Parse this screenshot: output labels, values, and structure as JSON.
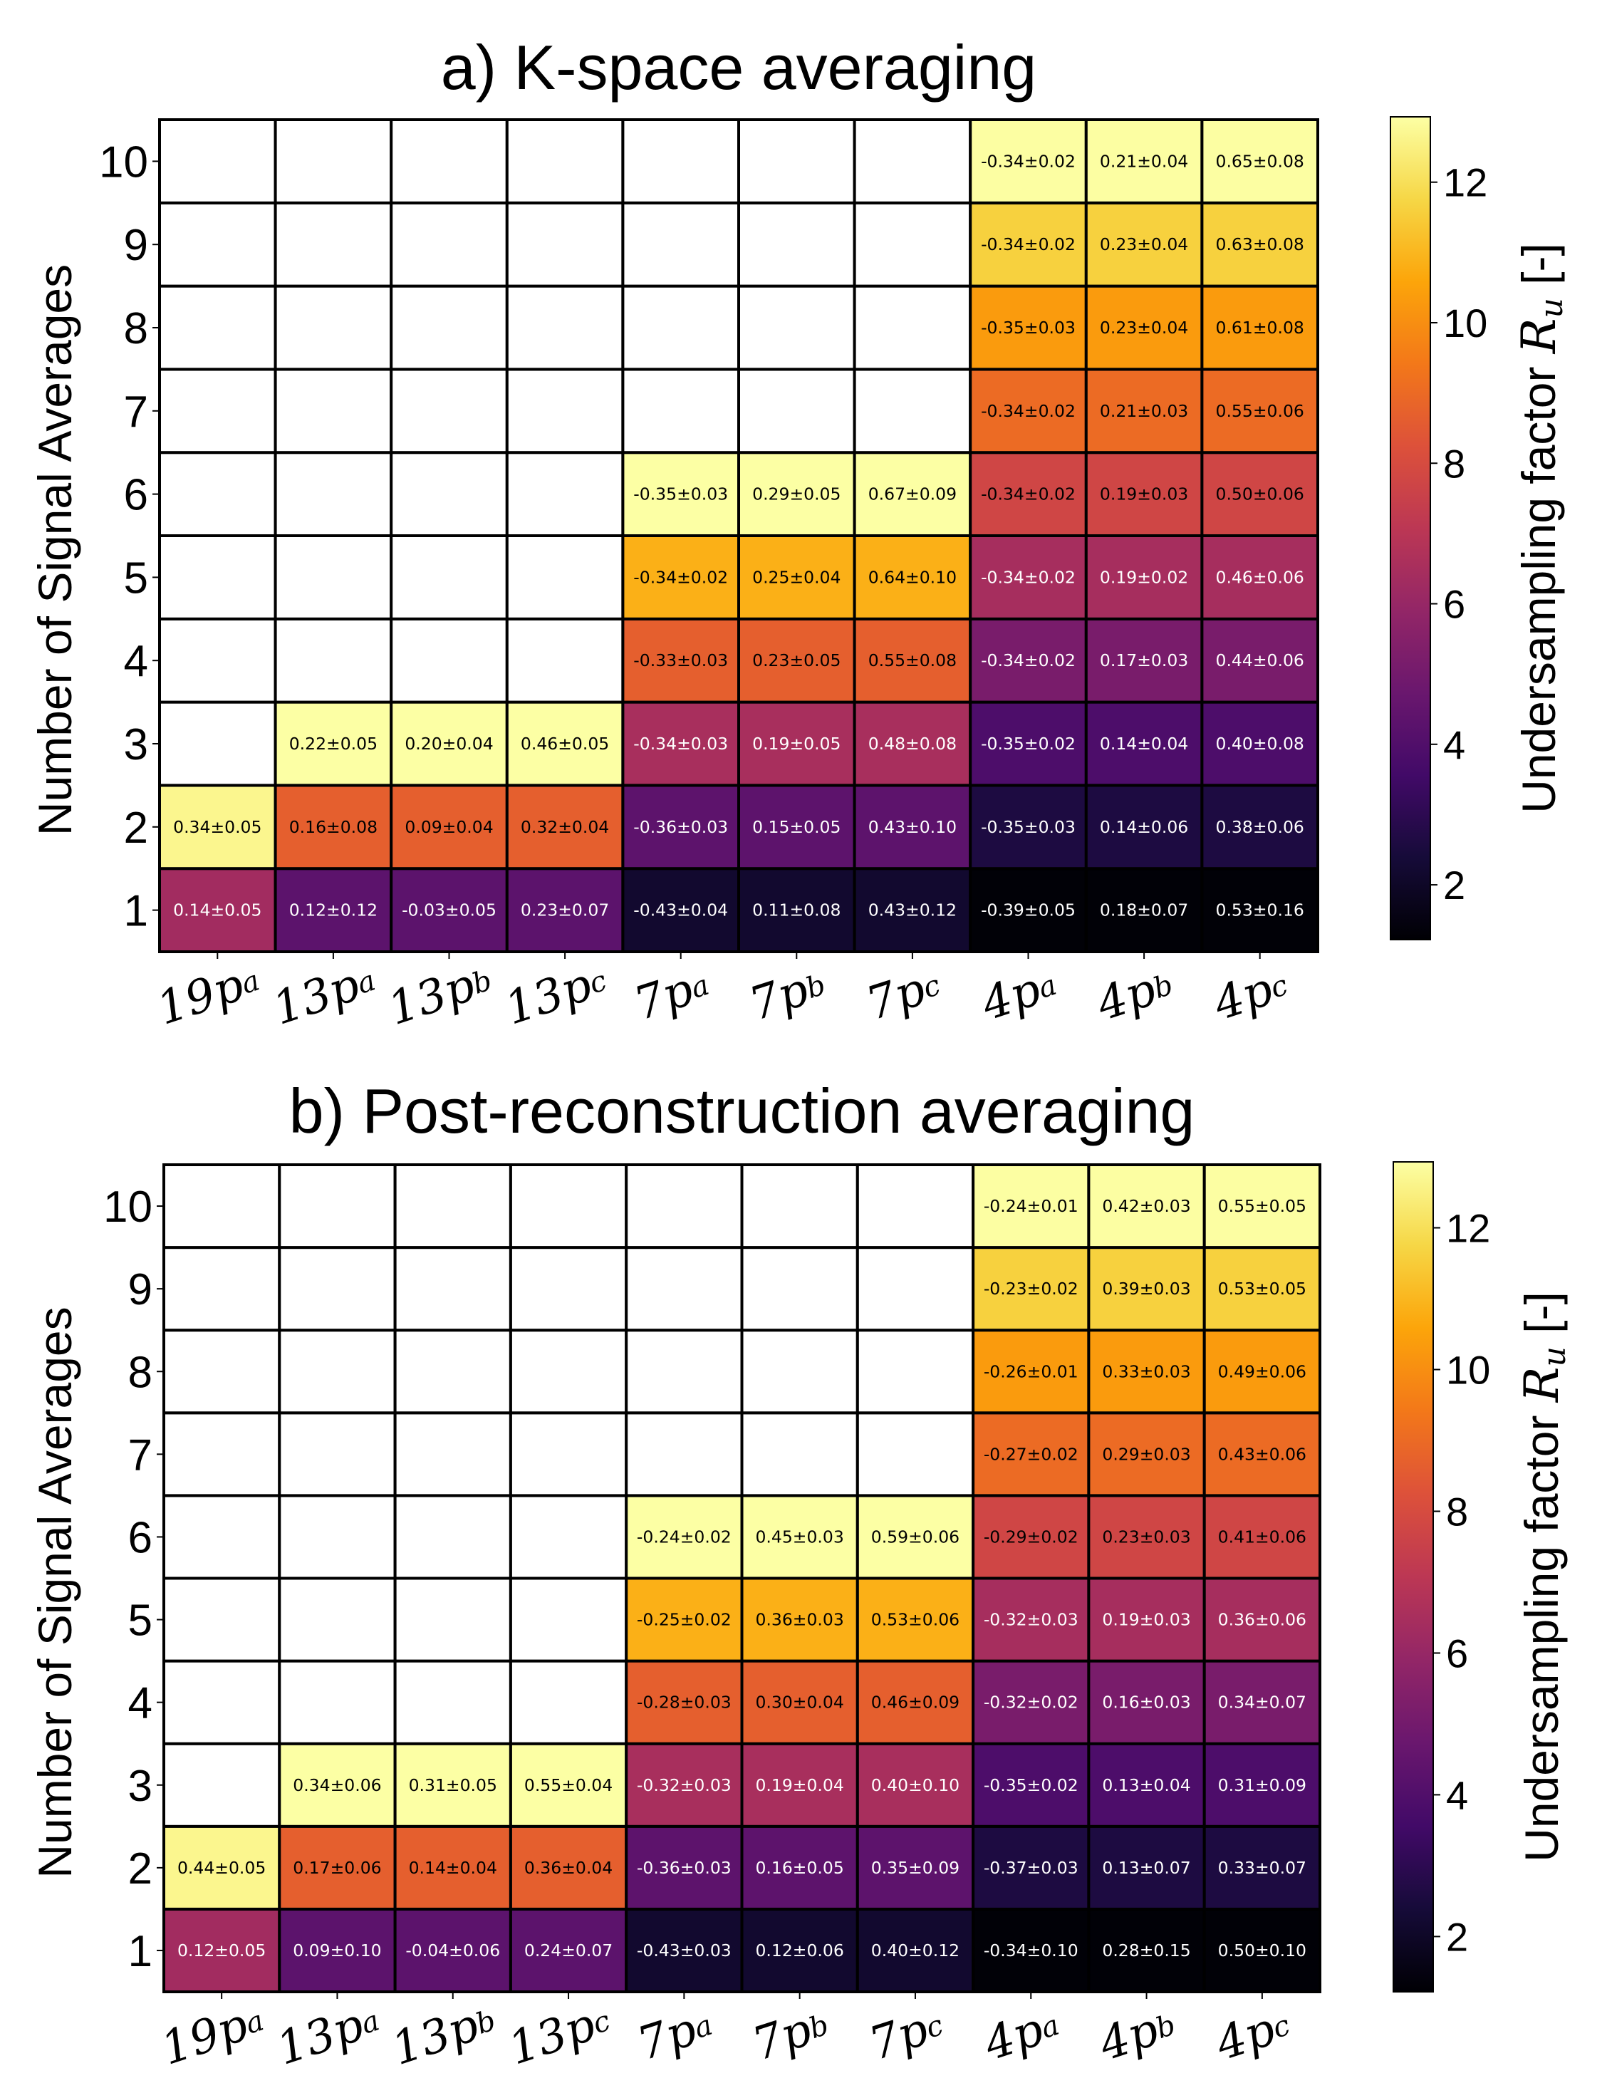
{
  "chart_data": [
    {
      "type": "heatmap",
      "title": "a) K-space averaging",
      "ylabel": "Number of Signal Averages",
      "colorbar_label": "Undersampling factor ",
      "colorbar_symbol": "R",
      "colorbar_symbol_sub": "u",
      "colorbar_unit": " [-]",
      "colorbar_ticks": [
        "2",
        "4",
        "6",
        "8",
        "10",
        "12"
      ],
      "colorbar_range": [
        1.22,
        12.93
      ],
      "colormap": "inferno",
      "x_labels": [
        {
          "main": "19p",
          "sub": "a"
        },
        {
          "main": "13p",
          "sub": "a"
        },
        {
          "main": "13p",
          "sub": "b"
        },
        {
          "main": "13p",
          "sub": "c"
        },
        {
          "main": "7p",
          "sub": "a"
        },
        {
          "main": "7p",
          "sub": "b"
        },
        {
          "main": "7p",
          "sub": "c"
        },
        {
          "main": "4p",
          "sub": "a"
        },
        {
          "main": "4p",
          "sub": "b"
        },
        {
          "main": "4p",
          "sub": "c"
        }
      ],
      "y_labels": [
        "1",
        "2",
        "3",
        "4",
        "5",
        "6",
        "7",
        "8",
        "9",
        "10"
      ],
      "ru_per_average": [
        6.33,
        4.33,
        4.33,
        4.33,
        2.17,
        2.17,
        2.17,
        1.29,
        1.29,
        1.29
      ],
      "rows": [
        [
          "0.14±0.05",
          "0.12±0.12",
          "-0.03±0.05",
          "0.23±0.07",
          "-0.43±0.04",
          "0.11±0.08",
          "0.43±0.12",
          "-0.39±0.05",
          "0.18±0.07",
          "0.53±0.16"
        ],
        [
          "0.34±0.05",
          "0.16±0.08",
          "0.09±0.04",
          "0.32±0.04",
          "-0.36±0.03",
          "0.15±0.05",
          "0.43±0.10",
          "-0.35±0.03",
          "0.14±0.06",
          "0.38±0.06"
        ],
        [
          null,
          "0.22±0.05",
          "0.20±0.04",
          "0.46±0.05",
          "-0.34±0.03",
          "0.19±0.05",
          "0.48±0.08",
          "-0.35±0.02",
          "0.14±0.04",
          "0.40±0.08"
        ],
        [
          null,
          null,
          null,
          null,
          "-0.33±0.03",
          "0.23±0.05",
          "0.55±0.08",
          "-0.34±0.02",
          "0.17±0.03",
          "0.44±0.06"
        ],
        [
          null,
          null,
          null,
          null,
          "-0.34±0.02",
          "0.25±0.04",
          "0.64±0.10",
          "-0.34±0.02",
          "0.19±0.02",
          "0.46±0.06"
        ],
        [
          null,
          null,
          null,
          null,
          "-0.35±0.03",
          "0.29±0.05",
          "0.67±0.09",
          "-0.34±0.02",
          "0.19±0.03",
          "0.50±0.06"
        ],
        [
          null,
          null,
          null,
          null,
          null,
          null,
          null,
          "-0.34±0.02",
          "0.21±0.03",
          "0.55±0.06"
        ],
        [
          null,
          null,
          null,
          null,
          null,
          null,
          null,
          "-0.35±0.03",
          "0.23±0.04",
          "0.61±0.08"
        ],
        [
          null,
          null,
          null,
          null,
          null,
          null,
          null,
          "-0.34±0.02",
          "0.23±0.04",
          "0.63±0.08"
        ],
        [
          null,
          null,
          null,
          null,
          null,
          null,
          null,
          "-0.34±0.02",
          "0.21±0.04",
          "0.65±0.08"
        ]
      ]
    },
    {
      "type": "heatmap",
      "title": "b) Post-reconstruction averaging",
      "ylabel": "Number of Signal Averages",
      "colorbar_label": "Undersampling factor ",
      "colorbar_symbol": "R",
      "colorbar_symbol_sub": "u",
      "colorbar_unit": " [-]",
      "colorbar_ticks": [
        "2",
        "4",
        "6",
        "8",
        "10",
        "12"
      ],
      "colorbar_range": [
        1.22,
        12.93
      ],
      "colormap": "inferno",
      "x_labels": [
        {
          "main": "19p",
          "sub": "a"
        },
        {
          "main": "13p",
          "sub": "a"
        },
        {
          "main": "13p",
          "sub": "b"
        },
        {
          "main": "13p",
          "sub": "c"
        },
        {
          "main": "7p",
          "sub": "a"
        },
        {
          "main": "7p",
          "sub": "b"
        },
        {
          "main": "7p",
          "sub": "c"
        },
        {
          "main": "4p",
          "sub": "a"
        },
        {
          "main": "4p",
          "sub": "b"
        },
        {
          "main": "4p",
          "sub": "c"
        }
      ],
      "y_labels": [
        "1",
        "2",
        "3",
        "4",
        "5",
        "6",
        "7",
        "8",
        "9",
        "10"
      ],
      "ru_per_average": [
        6.33,
        4.33,
        4.33,
        4.33,
        2.17,
        2.17,
        2.17,
        1.29,
        1.29,
        1.29
      ],
      "rows": [
        [
          "0.12±0.05",
          "0.09±0.10",
          "-0.04±0.06",
          "0.24±0.07",
          "-0.43±0.03",
          "0.12±0.06",
          "0.40±0.12",
          "-0.34±0.10",
          "0.28±0.15",
          "0.50±0.10"
        ],
        [
          "0.44±0.05",
          "0.17±0.06",
          "0.14±0.04",
          "0.36±0.04",
          "-0.36±0.03",
          "0.16±0.05",
          "0.35±0.09",
          "-0.37±0.03",
          "0.13±0.07",
          "0.33±0.07"
        ],
        [
          null,
          "0.34±0.06",
          "0.31±0.05",
          "0.55±0.04",
          "-0.32±0.03",
          "0.19±0.04",
          "0.40±0.10",
          "-0.35±0.02",
          "0.13±0.04",
          "0.31±0.09"
        ],
        [
          null,
          null,
          null,
          null,
          "-0.28±0.03",
          "0.30±0.04",
          "0.46±0.09",
          "-0.32±0.02",
          "0.16±0.03",
          "0.34±0.07"
        ],
        [
          null,
          null,
          null,
          null,
          "-0.25±0.02",
          "0.36±0.03",
          "0.53±0.06",
          "-0.32±0.03",
          "0.19±0.03",
          "0.36±0.06"
        ],
        [
          null,
          null,
          null,
          null,
          "-0.24±0.02",
          "0.45±0.03",
          "0.59±0.06",
          "-0.29±0.02",
          "0.23±0.03",
          "0.41±0.06"
        ],
        [
          null,
          null,
          null,
          null,
          null,
          null,
          null,
          "-0.27±0.02",
          "0.29±0.03",
          "0.43±0.06"
        ],
        [
          null,
          null,
          null,
          null,
          null,
          null,
          null,
          "-0.26±0.01",
          "0.33±0.03",
          "0.49±0.06"
        ],
        [
          null,
          null,
          null,
          null,
          null,
          null,
          null,
          "-0.23±0.02",
          "0.39±0.03",
          "0.53±0.05"
        ],
        [
          null,
          null,
          null,
          null,
          null,
          null,
          null,
          "-0.24±0.01",
          "0.42±0.03",
          "0.55±0.05"
        ]
      ]
    }
  ]
}
